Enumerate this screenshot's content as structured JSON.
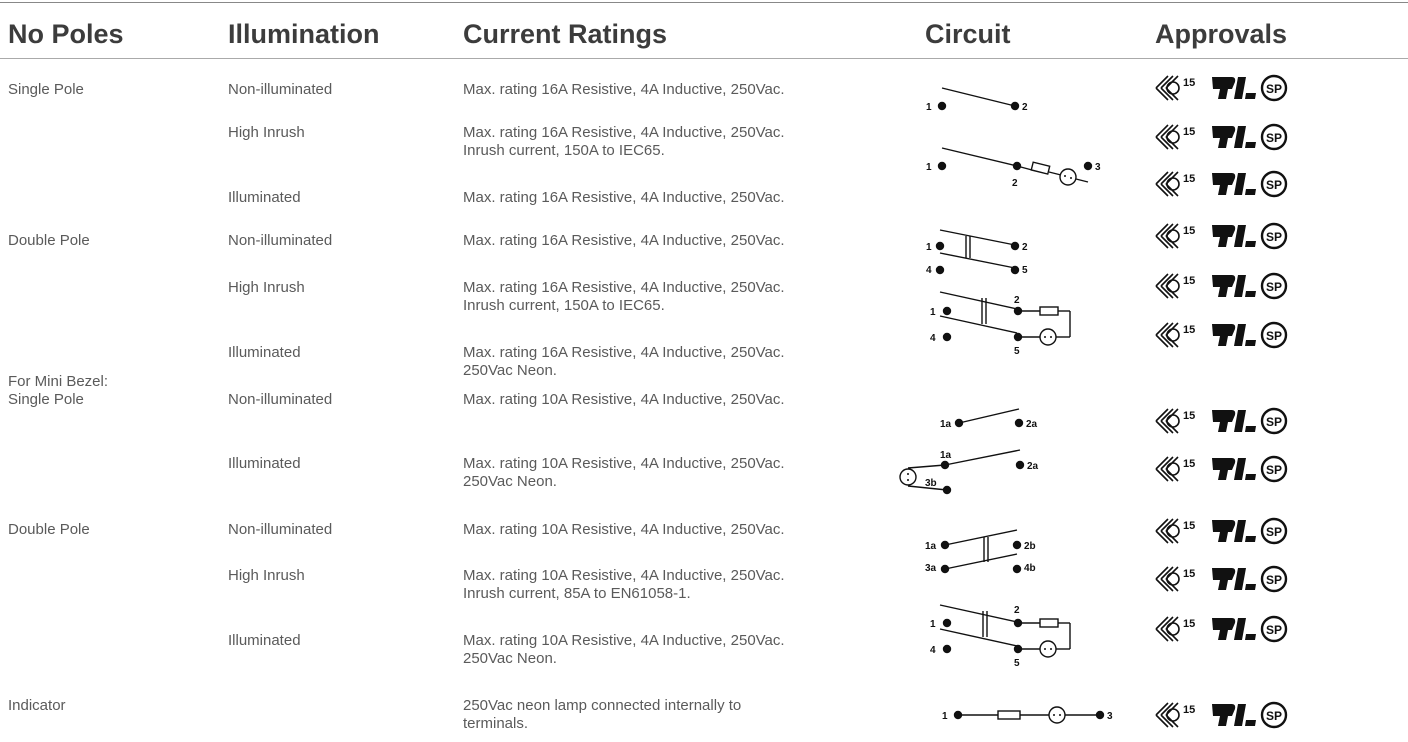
{
  "headers": {
    "poles": "No Poles",
    "illumination": "Illumination",
    "ratings": "Current Ratings",
    "circuit": "Circuit",
    "approvals": "Approvals"
  },
  "rows": [
    {
      "poles": [
        "Single Pole"
      ],
      "illumination": "Non-illuminated",
      "ratings": [
        "Max. rating 16A Resistive, 4A Inductive, 250Vac."
      ],
      "approvals_mark": "15"
    },
    {
      "poles": [],
      "illumination": "High Inrush",
      "ratings": [
        "Max. rating 16A Resistive, 4A Inductive, 250Vac.",
        "Inrush current, 150A to IEC65."
      ],
      "approvals_mark": "15"
    },
    {
      "poles": [],
      "illumination": "Illuminated",
      "ratings": [
        "Max. rating 16A Resistive, 4A Inductive, 250Vac."
      ],
      "approvals_mark": "15"
    },
    {
      "poles": [
        "Double Pole"
      ],
      "illumination": "Non-illuminated",
      "ratings": [
        "Max. rating 16A Resistive, 4A Inductive, 250Vac."
      ],
      "approvals_mark": "15"
    },
    {
      "poles": [],
      "illumination": "High Inrush",
      "ratings": [
        "Max. rating 16A Resistive, 4A Inductive, 250Vac.",
        "Inrush current, 150A to IEC65."
      ],
      "approvals_mark": "15"
    },
    {
      "poles": [],
      "illumination": "Illuminated",
      "ratings": [
        "Max. rating 16A Resistive, 4A Inductive, 250Vac.",
        "250Vac Neon."
      ],
      "approvals_mark": "15"
    },
    {
      "poles": [
        "For Mini Bezel:",
        "Single Pole"
      ],
      "illumination": "Non-illuminated",
      "ratings": [
        "Max. rating 10A Resistive, 4A Inductive, 250Vac."
      ],
      "approvals_mark": "15"
    },
    {
      "poles": [],
      "illumination": "Illuminated",
      "ratings": [
        "Max. rating 10A Resistive, 4A Inductive, 250Vac.",
        "250Vac Neon."
      ],
      "approvals_mark": "15"
    },
    {
      "poles": [
        "Double Pole"
      ],
      "illumination": "Non-illuminated",
      "ratings": [
        "Max. rating 10A Resistive, 4A Inductive, 250Vac."
      ],
      "approvals_mark": "15"
    },
    {
      "poles": [],
      "illumination": "High Inrush",
      "ratings": [
        "Max. rating 10A Resistive, 4A Inductive, 250Vac.",
        "Inrush current, 85A to EN61058-1."
      ],
      "approvals_mark": "15"
    },
    {
      "poles": [],
      "illumination": "Illuminated",
      "ratings": [
        "Max. rating 10A Resistive, 4A Inductive, 250Vac.",
        "250Vac Neon."
      ],
      "approvals_mark": "15"
    },
    {
      "poles": [
        "Indicator"
      ],
      "illumination": "",
      "ratings": [
        "250Vac neon lamp connected internally to",
        "terminals."
      ],
      "approvals_mark": "15"
    }
  ],
  "circuits": {
    "sp_basic": [
      "1",
      "2"
    ],
    "sp_illum": [
      "1",
      "2",
      "3"
    ],
    "dp_basic": [
      "1",
      "2",
      "4",
      "5"
    ],
    "dp_illum": [
      "1",
      "2",
      "4",
      "5"
    ],
    "mini_sp": [
      "1a",
      "2a"
    ],
    "mini_sp_illum": [
      "1a",
      "2a",
      "3b"
    ],
    "mini_dp": [
      "1a",
      "2b",
      "3a",
      "4b"
    ],
    "mini_dp_illum": [
      "1",
      "2",
      "4",
      "5"
    ],
    "indicator": [
      "1",
      "3"
    ]
  }
}
